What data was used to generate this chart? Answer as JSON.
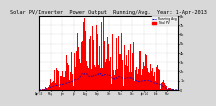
{
  "title": "Solar PV/Inverter  Power Output  Running/Avg.  Year: 1-Apr-2013",
  "ylabel_right": [
    "8k",
    "7k",
    "6k",
    "5k",
    "4k",
    "3k",
    "2k",
    "1k",
    "0"
  ],
  "ymax": 8000,
  "ymin": 0,
  "bar_color": "#ff0000",
  "avg_color": "#0000cc",
  "background_color": "#d8d8d8",
  "plot_bg": "#ffffff",
  "grid_color": "#aaaaaa",
  "title_fontsize": 3.8,
  "num_bars": 365,
  "seed": 7
}
